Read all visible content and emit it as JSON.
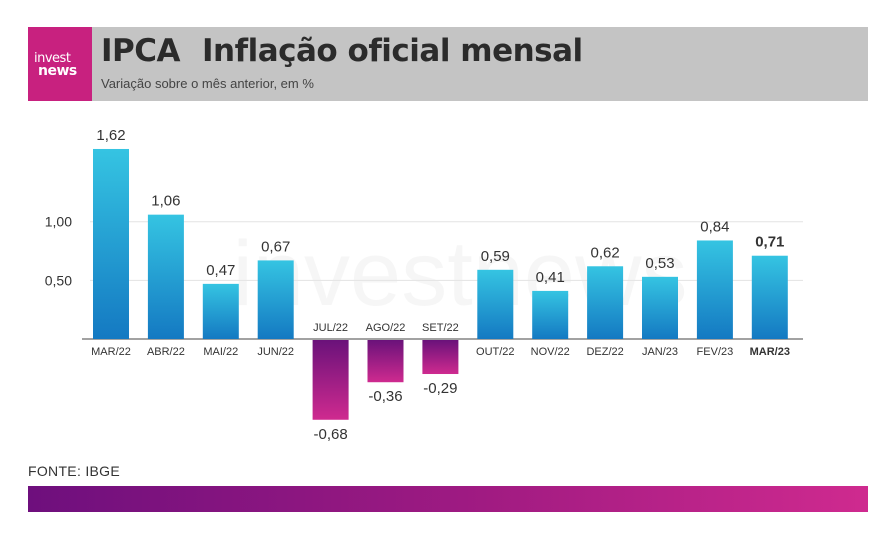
{
  "header": {
    "logo_line1": "invest",
    "logo_line2": "news",
    "title_main": "IPCA",
    "title_rest": "Inflação oficial mensal",
    "subtitle": "Variação sobre o mês anterior, em %"
  },
  "footer": {
    "source": "FONTE: IBGE"
  },
  "watermark": "investnews",
  "colors": {
    "positive_top": "#35c4e2",
    "positive_bottom": "#1479c2",
    "negative_top": "#6a127a",
    "negative_bottom": "#cf2a8f",
    "header_bg": "#c4c4c4",
    "logo_bg": "#c8217f"
  },
  "chart_data": {
    "type": "bar",
    "categories": [
      "MAR/22",
      "ABR/22",
      "MAI/22",
      "JUN/22",
      "JUL/22",
      "AGO/22",
      "SET/22",
      "OUT/22",
      "NOV/22",
      "DEZ/22",
      "JAN/23",
      "FEV/23",
      "MAR/23"
    ],
    "values": [
      1.62,
      1.06,
      0.47,
      0.67,
      -0.68,
      -0.36,
      -0.29,
      0.59,
      0.41,
      0.62,
      0.53,
      0.84,
      0.71
    ],
    "value_labels": [
      "1,62",
      "1,06",
      "0,47",
      "0,67",
      "-0,68",
      "-0,36",
      "-0,29",
      "0,59",
      "0,41",
      "0,62",
      "0,53",
      "0,84",
      "0,71"
    ],
    "highlight": "MAR/23",
    "yticks": [
      0.5,
      1.0
    ],
    "ytick_labels": [
      "0,50",
      "1,00"
    ],
    "ylim": [
      -0.68,
      1.62
    ],
    "grid": true
  }
}
